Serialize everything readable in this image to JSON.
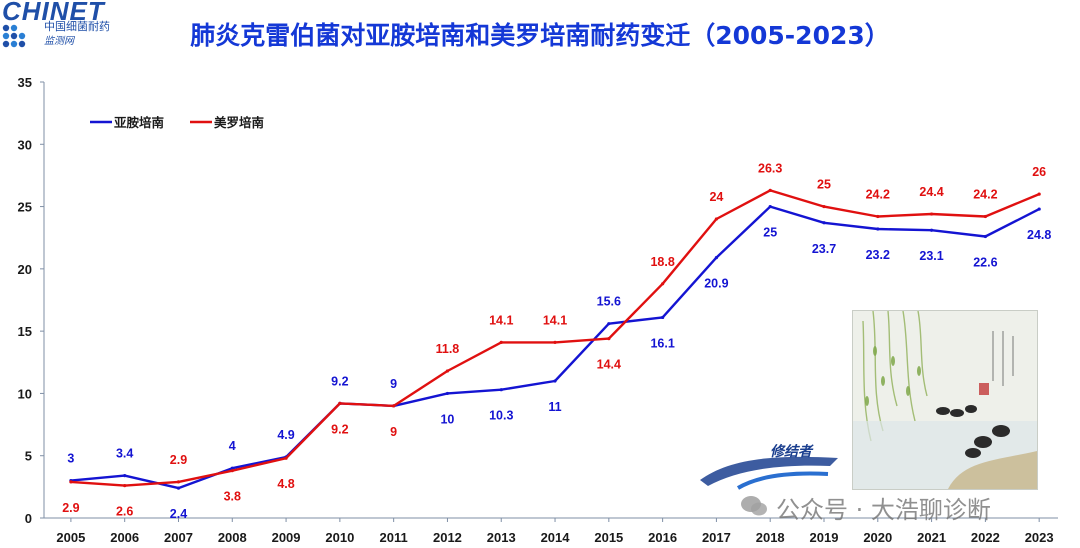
{
  "logo": {
    "brand": "CHINET",
    "sub1": "中国细菌耐药",
    "sub2": "监测网"
  },
  "title": "肺炎克雷伯菌对亚胺培南和美罗培南耐药变迁（2005-2023）",
  "watermark": {
    "text": "公众号 · 大浩聊诊断"
  },
  "brand2": {
    "text": "修结者"
  },
  "colors": {
    "imipenem": "#1414d2",
    "meropenem": "#e01010",
    "title": "#1438d6"
  },
  "chart_data": {
    "type": "line",
    "title": "肺炎克雷伯菌对亚胺培南和美罗培南耐药变迁（2005-2023）",
    "x": [
      "2005",
      "2006",
      "2007",
      "2008",
      "2009",
      "2010",
      "2011",
      "2012",
      "2013",
      "2014",
      "2015",
      "2016",
      "2017",
      "2018",
      "2019",
      "2020",
      "2021",
      "2022",
      "2023"
    ],
    "ylim": [
      0,
      35
    ],
    "yticks": [
      "0",
      "5",
      "10",
      "15",
      "20",
      "25",
      "30",
      "35"
    ],
    "grid": false,
    "legend": "top-left",
    "series": [
      {
        "name": "亚胺培南",
        "color": "#1414d2",
        "values": [
          3,
          3.4,
          2.4,
          4,
          4.9,
          9.2,
          9,
          10,
          10.3,
          11,
          15.6,
          16.1,
          20.9,
          25,
          23.7,
          23.2,
          23.1,
          22.6,
          24.8
        ],
        "labels": [
          "3",
          "3.4",
          "2.4",
          "4",
          "4.9",
          "9.2",
          "9",
          "10",
          "10.3",
          "11",
          "15.6",
          "16.1",
          "20.9",
          "25",
          "23.7",
          "23.2",
          "23.1",
          "22.6",
          "24.8"
        ]
      },
      {
        "name": "美罗培南",
        "color": "#e01010",
        "values": [
          2.9,
          2.6,
          2.9,
          3.8,
          4.8,
          9.2,
          9,
          11.8,
          14.1,
          14.1,
          14.4,
          18.8,
          24,
          26.3,
          25,
          24.2,
          24.4,
          24.2,
          26
        ],
        "labels": [
          "2.9",
          "2.6",
          "2.9",
          "3.8",
          "4.8",
          "9.2",
          "9",
          "11.8",
          "14.1",
          "14.1",
          "14.4",
          "18.8",
          "24",
          "26.3",
          "25",
          "24.2",
          "24.4",
          "24.2",
          "26"
        ]
      }
    ]
  }
}
